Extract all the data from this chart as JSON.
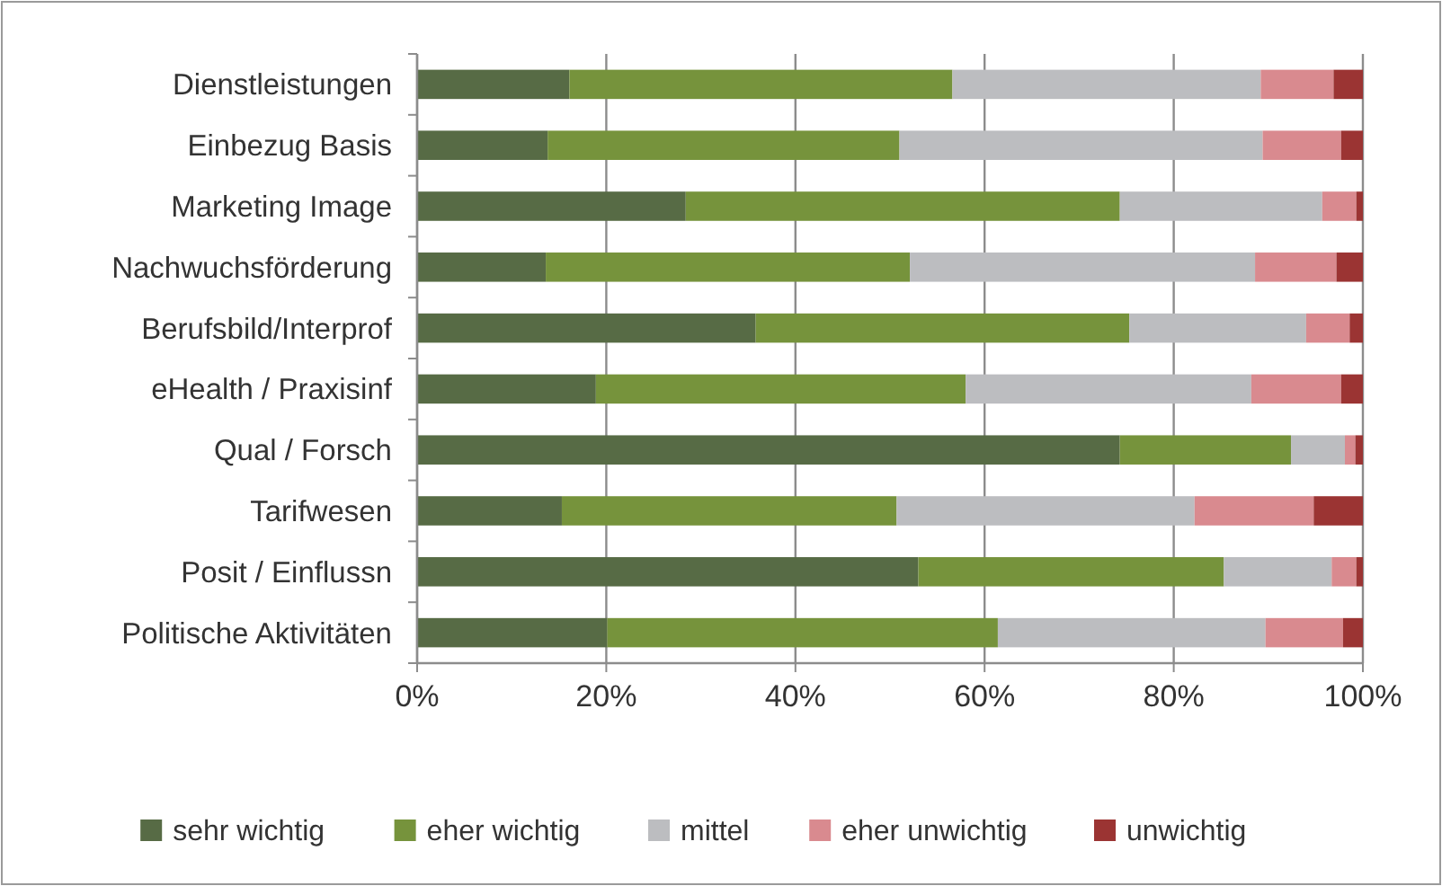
{
  "chart_data": {
    "type": "bar",
    "orientation": "horizontal",
    "stacked": true,
    "categories": [
      "Dienstleistungen",
      "Einbezug Basis",
      "Marketing Image",
      "Nachwuchsförderung",
      "Berufsbild/Interprof",
      "eHealth / Praxisinf",
      "Qual / Forsch",
      "Tarifwesen",
      "Posit / Einflussn",
      "Politische Aktivitäten"
    ],
    "series": [
      {
        "name": "sehr wichtig",
        "color": "#576b45",
        "values": [
          16.1,
          13.8,
          28.4,
          13.6,
          35.8,
          18.9,
          74.3,
          15.3,
          53.0,
          20.1
        ]
      },
      {
        "name": "eher wichtig",
        "color": "#76933c",
        "values": [
          40.5,
          37.2,
          45.9,
          38.5,
          39.5,
          39.1,
          18.1,
          35.4,
          32.3,
          41.3
        ]
      },
      {
        "name": "mittel",
        "color": "#bcbdc0",
        "values": [
          32.6,
          38.4,
          21.4,
          36.5,
          18.7,
          30.2,
          5.7,
          31.5,
          11.4,
          28.3
        ]
      },
      {
        "name": "eher unwichtig",
        "color": "#d98a8f",
        "values": [
          7.7,
          8.3,
          3.6,
          8.6,
          4.6,
          9.5,
          1.1,
          12.6,
          2.6,
          8.2
        ]
      },
      {
        "name": "unwichtig",
        "color": "#9b3433",
        "values": [
          3.1,
          2.3,
          0.7,
          2.8,
          1.4,
          2.3,
          0.8,
          5.2,
          0.7,
          2.1
        ]
      }
    ],
    "xlim": [
      0,
      100
    ],
    "xticks": [
      {
        "value": 0,
        "label": "0%"
      },
      {
        "value": 20,
        "label": "20%"
      },
      {
        "value": 40,
        "label": "40%"
      },
      {
        "value": 60,
        "label": "60%"
      },
      {
        "value": 80,
        "label": "80%"
      },
      {
        "value": 100,
        "label": "100%"
      }
    ],
    "grid": "x",
    "legend": "bottom"
  }
}
